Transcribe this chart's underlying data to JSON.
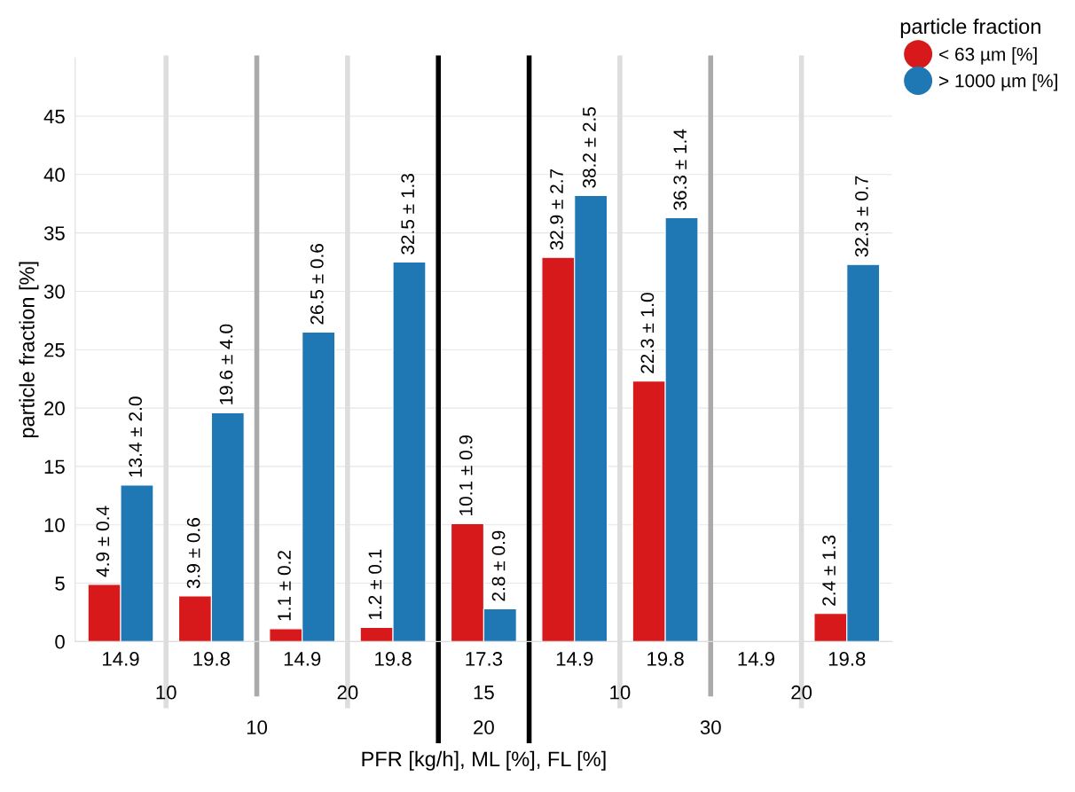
{
  "chart_data": {
    "type": "bar",
    "ylabel": "particle fraction [%]",
    "xlabel": "PFR [kg/h], ML [%], FL [%]",
    "legend_title": "particle fraction",
    "categories": [
      "14.9",
      "19.8",
      "14.9",
      "19.8",
      "17.3",
      "14.9",
      "19.8",
      "14.9",
      "19.8"
    ],
    "series": [
      {
        "name": "< 63 µm [%]",
        "color": "#d7191c",
        "values": [
          4.9,
          3.9,
          1.1,
          1.2,
          10.1,
          32.9,
          22.3,
          null,
          2.4
        ],
        "value_labels": [
          "4.9 ± 0.4",
          "3.9 ± 0.6",
          "1.1 ± 0.2",
          "1.2 ± 0.1",
          "10.1 ± 0.9",
          "32.9 ± 2.7",
          "22.3 ± 1.0",
          null,
          "2.4 ± 1.3"
        ]
      },
      {
        "name": "> 1000 µm [%]",
        "color": "#1f78b4",
        "values": [
          13.4,
          19.6,
          26.5,
          32.5,
          2.8,
          38.2,
          36.3,
          null,
          32.3
        ],
        "value_labels": [
          "13.4 ± 2.0",
          "19.6 ± 4.0",
          "26.5 ± 0.6",
          "32.5 ± 1.3",
          "2.8 ± 0.9",
          "38.2 ± 2.5",
          "36.3 ± 1.4",
          null,
          "32.3 ± 0.7"
        ]
      }
    ],
    "annotations": [
      "10",
      "20",
      "15",
      "10",
      "20",
      "10",
      "20",
      "30"
    ],
    "ylim": [
      0,
      50
    ],
    "yticks": [
      0,
      5,
      10,
      15,
      20,
      25,
      30,
      35,
      40,
      45
    ],
    "grid": "y",
    "legend": "top right",
    "marker": "circle"
  }
}
